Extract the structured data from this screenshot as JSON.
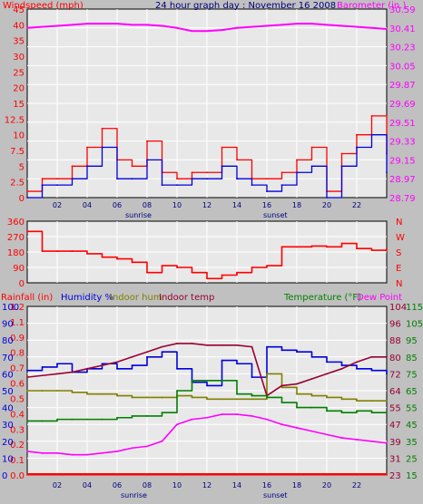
{
  "colors": {
    "bg": "#c0c0c0",
    "plot": "#e8e8e8",
    "grid": "#ffffff",
    "red": "#ff0000",
    "blue": "#0000dd",
    "magenta": "#ff00ff",
    "olive": "#808000",
    "green": "#008000",
    "darkred": "#990033",
    "purple": "#8000a0"
  },
  "chart_data": [
    {
      "type": "line",
      "title": "24 hour graph day : November 16 2008",
      "left_label": "Windspeed (mph)",
      "right_label": "Barometer (in.)",
      "x_ticks": [
        "02",
        "04",
        "06",
        "08",
        "10",
        "12",
        "14",
        "16",
        "18",
        "20",
        "22"
      ],
      "x_annotations": [
        "sunrise",
        "sunset"
      ],
      "y_left_ticks": [
        "0",
        "2.5",
        "5",
        "7.5",
        "10",
        "12.5",
        "15",
        "20",
        "25",
        "30",
        "35",
        "40",
        "45"
      ],
      "y_right_ticks": [
        "28.79",
        "28.97",
        "29.15",
        "29.33",
        "29.51",
        "29.69",
        "29.87",
        "30.05",
        "30.23",
        "30.41",
        "30.59"
      ],
      "ylim_left": [
        0,
        45
      ],
      "ylim_right": [
        28.79,
        30.59
      ],
      "x": [
        0,
        1,
        2,
        3,
        4,
        5,
        6,
        7,
        8,
        9,
        10,
        11,
        12,
        13,
        14,
        15,
        16,
        17,
        18,
        19,
        20,
        21,
        22,
        23,
        24
      ],
      "series": [
        {
          "name": "Gust",
          "color": "red",
          "axis": "left",
          "values": [
            1,
            3,
            3,
            5,
            8,
            11,
            6,
            5,
            9,
            4,
            3,
            4,
            4,
            8,
            6,
            3,
            3,
            4,
            6,
            8,
            1,
            7,
            10,
            13,
            7
          ]
        },
        {
          "name": "Windspeed",
          "color": "blue",
          "axis": "left",
          "values": [
            0,
            2,
            2,
            3,
            5,
            8,
            3,
            3,
            6,
            2,
            2,
            3,
            3,
            5,
            3,
            2,
            1,
            2,
            4,
            5,
            0,
            5,
            8,
            10,
            4
          ]
        },
        {
          "name": "Barometer",
          "color": "magenta",
          "axis": "right",
          "values": [
            30.41,
            30.42,
            30.43,
            30.44,
            30.45,
            30.45,
            30.45,
            30.44,
            30.44,
            30.43,
            30.41,
            30.38,
            30.38,
            30.39,
            30.41,
            30.42,
            30.43,
            30.44,
            30.45,
            30.45,
            30.44,
            30.43,
            30.42,
            30.41,
            30.4
          ]
        }
      ]
    },
    {
      "type": "line",
      "title": "",
      "y_left_ticks": [
        "0",
        "90",
        "180",
        "270",
        "360"
      ],
      "y_right_labels": [
        "N",
        "W",
        "S",
        "E",
        "N"
      ],
      "ylim": [
        0,
        360
      ],
      "x": [
        0,
        1,
        2,
        3,
        4,
        5,
        6,
        7,
        8,
        9,
        10,
        11,
        12,
        13,
        14,
        15,
        16,
        17,
        18,
        19,
        20,
        21,
        22,
        23,
        24
      ],
      "series": [
        {
          "name": "Wind direction",
          "color": "red",
          "values": [
            300,
            185,
            185,
            185,
            170,
            150,
            140,
            120,
            60,
            100,
            90,
            60,
            25,
            45,
            60,
            90,
            100,
            210,
            210,
            215,
            210,
            230,
            200,
            190,
            200
          ]
        }
      ]
    },
    {
      "type": "line",
      "title": "",
      "legend": [
        "Rainfall (in)",
        "Humidity %",
        "Indoor hum",
        "Indoor temp",
        "Temperature (°F)",
        "Dew Point"
      ],
      "x_ticks": [
        "02",
        "04",
        "06",
        "08",
        "10",
        "12",
        "14",
        "16",
        "18",
        "20",
        "22"
      ],
      "x_annotations": [
        "sunrise",
        "sunset"
      ],
      "y_rain_ticks": [
        "0.0",
        "0.1",
        "0.2",
        "0.3",
        "0.4",
        "0.5",
        "0.6",
        "0.7",
        "0.8",
        "0.9",
        "1.1",
        "1.2"
      ],
      "y_hum_ticks": [
        "0",
        "10",
        "20",
        "30",
        "40",
        "50",
        "60",
        "70",
        "80",
        "90",
        "100"
      ],
      "y_right_a_ticks": [
        "23",
        "31",
        "39",
        "47",
        "55",
        "64",
        "72",
        "80",
        "88",
        "96",
        "104"
      ],
      "y_right_b_ticks": [
        "15",
        "25",
        "35",
        "45",
        "55",
        "65",
        "75",
        "85",
        "95",
        "105",
        "115"
      ],
      "ylim_left": [
        0,
        100
      ],
      "x": [
        0,
        1,
        2,
        3,
        4,
        5,
        6,
        7,
        8,
        9,
        10,
        11,
        12,
        13,
        14,
        15,
        16,
        17,
        18,
        19,
        20,
        21,
        22,
        23,
        24
      ],
      "series": [
        {
          "name": "Humidity %",
          "color": "blue",
          "values": [
            62,
            64,
            66,
            61,
            63,
            66,
            63,
            65,
            70,
            73,
            63,
            55,
            53,
            68,
            66,
            58,
            76,
            74,
            73,
            70,
            67,
            65,
            63,
            62,
            60
          ]
        },
        {
          "name": "Indoor hum",
          "color": "olive",
          "values": [
            50,
            50,
            50,
            49,
            48,
            48,
            47,
            46,
            46,
            46,
            47,
            46,
            45,
            45,
            45,
            45,
            60,
            52,
            48,
            47,
            46,
            45,
            44,
            44,
            44
          ]
        },
        {
          "name": "Indoor temp",
          "color": "darkred",
          "values": [
            58,
            59,
            60,
            61,
            63,
            65,
            67,
            70,
            73,
            76,
            78,
            78,
            77,
            77,
            77,
            76,
            47,
            53,
            54,
            57,
            60,
            63,
            67,
            70,
            70
          ]
        },
        {
          "name": "Temperature (°F)",
          "color": "green",
          "values": [
            32,
            32,
            33,
            33,
            33,
            33,
            34,
            35,
            35,
            37,
            50,
            56,
            56,
            56,
            48,
            47,
            46,
            43,
            40,
            40,
            38,
            37,
            38,
            37,
            37
          ]
        },
        {
          "name": "Dew Point",
          "color": "magenta",
          "values": [
            14,
            13,
            13,
            12,
            12,
            13,
            14,
            16,
            17,
            20,
            30,
            33,
            34,
            36,
            36,
            35,
            33,
            30,
            28,
            26,
            24,
            22,
            21,
            20,
            19
          ]
        },
        {
          "name": "Rainfall (in)",
          "color": "red",
          "values": [
            0.0,
            0.0,
            0.0,
            0.0,
            0.0,
            0.0,
            0.0,
            0.0,
            0.0,
            0.0,
            0.0,
            0.0,
            0.0,
            0.0,
            0.0,
            0.0,
            0.0,
            0.0,
            0.0,
            0.0,
            0.0,
            0.0,
            0.0,
            0.0,
            0.0
          ]
        }
      ]
    }
  ]
}
